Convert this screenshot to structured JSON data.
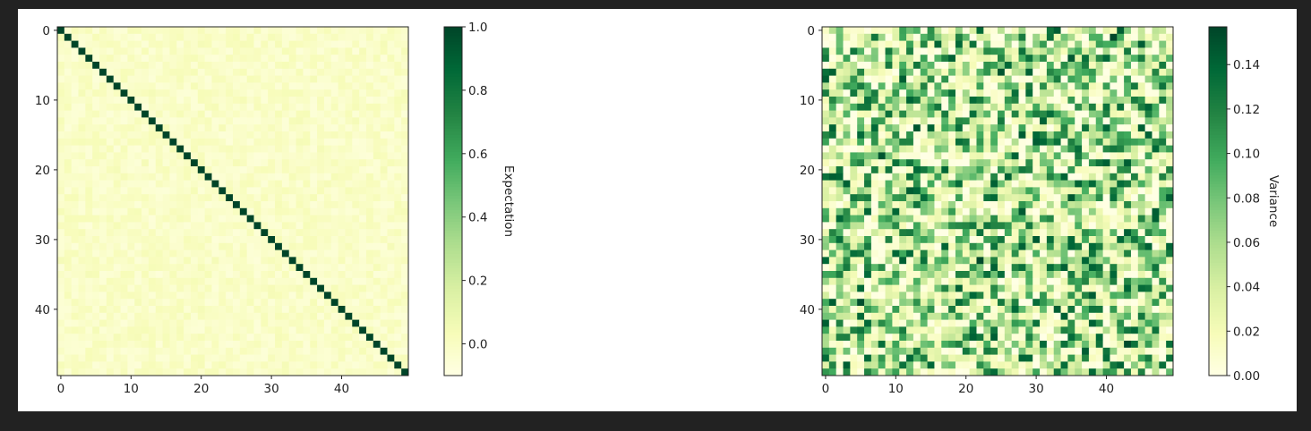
{
  "chart_data": [
    {
      "type": "heatmap",
      "title": "",
      "size": 50,
      "matrix_description": "identity-like expectation matrix: diagonal = 1.0, off-diagonal near 0",
      "diagonal_value": 1.0,
      "offdiag_range": [
        -0.06,
        0.04
      ],
      "xticks": [
        0,
        10,
        20,
        30,
        40
      ],
      "yticks": [
        0,
        10,
        20,
        30,
        40
      ],
      "colormap": "Greens",
      "colorbar": {
        "label": "Expectation",
        "min": -0.1,
        "max": 1.0,
        "ticks": [
          0.0,
          0.2,
          0.4,
          0.6,
          0.8,
          1.0
        ],
        "tick_labels": [
          "0.0",
          "0.2",
          "0.4",
          "0.6",
          "0.8",
          "1.0"
        ]
      }
    },
    {
      "type": "heatmap",
      "title": "",
      "size": 50,
      "value_range": [
        0.0,
        0.157
      ],
      "xticks": [
        0,
        10,
        20,
        30,
        40
      ],
      "yticks": [
        0,
        10,
        20,
        30,
        40
      ],
      "colormap": "Greens",
      "colorbar": {
        "label": "Variance",
        "min": 0.0,
        "max": 0.157,
        "ticks": [
          0.0,
          0.02,
          0.04,
          0.06,
          0.08,
          0.1,
          0.12,
          0.14
        ],
        "tick_labels": [
          "0.00",
          "0.02",
          "0.04",
          "0.06",
          "0.08",
          "0.10",
          "0.12",
          "0.14"
        ]
      }
    }
  ],
  "colors": {
    "background": "#222222",
    "figure": "#ffffff",
    "greens_low": "#f7fcb9",
    "greens_high": "#004529"
  }
}
